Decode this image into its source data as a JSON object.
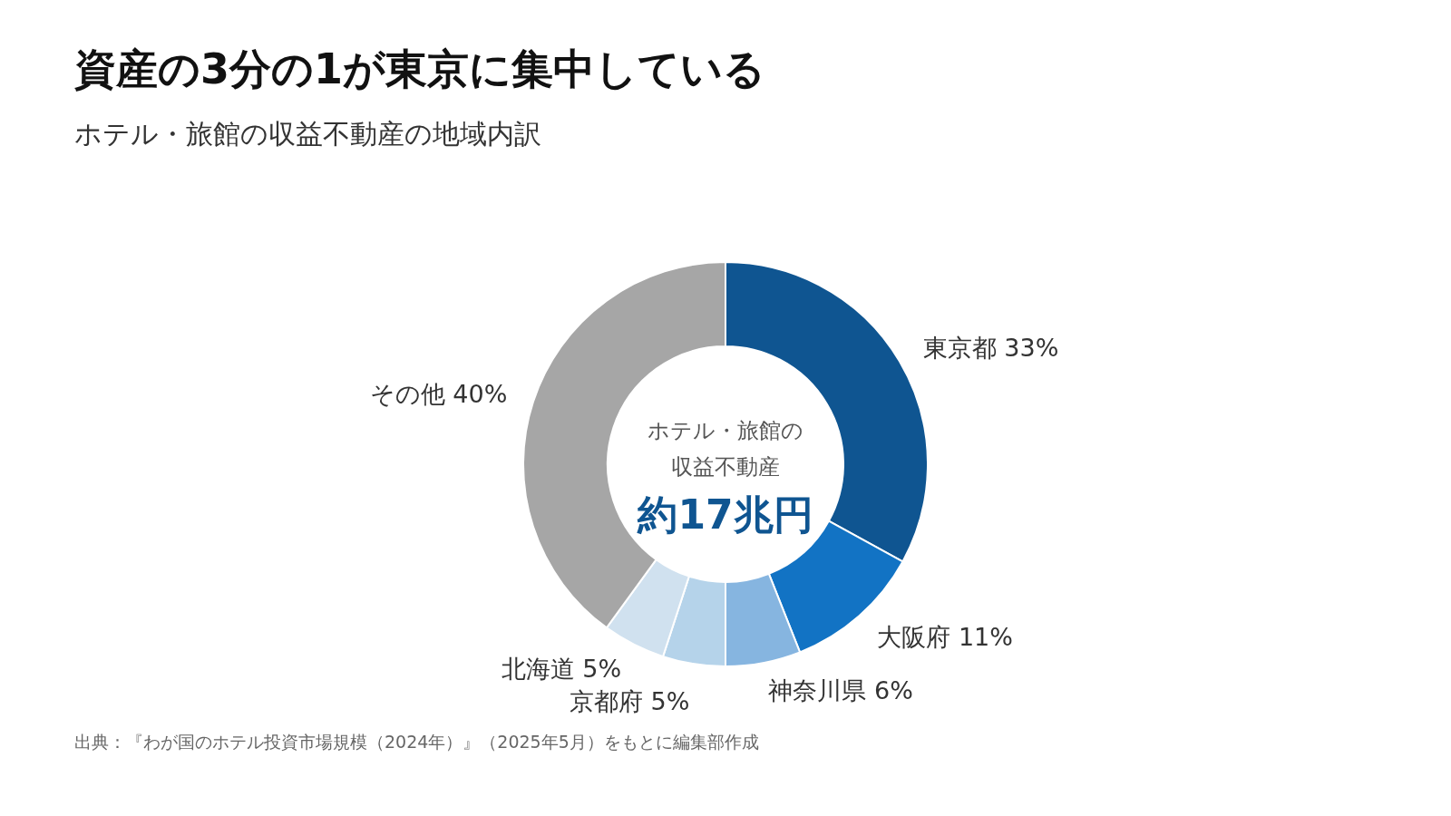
{
  "chart_data": {
    "type": "donut",
    "title": "資産の3分の1が東京に集中している",
    "subtitle": "ホテル・旅館の収益不動産の地域内訳",
    "categories": [
      "東京都",
      "大阪府",
      "神奈川県",
      "京都府",
      "北海道",
      "その他"
    ],
    "values": [
      33,
      11,
      6,
      5,
      5,
      40
    ],
    "value_labels": [
      "33%",
      "11%",
      "6%",
      "5%",
      "5%",
      "40%"
    ],
    "colors": [
      "#0f5591",
      "#1273c4",
      "#86b5e0",
      "#b5d3ea",
      "#d0e1ef",
      "#a6a6a6"
    ],
    "annotations": [
      "ホテル・旅館の",
      "収益不動産",
      "約17兆円",
      "出典：『わが国のホテル投資市場規模（2024年）』（2025年5月）をもとに編集部作成"
    ]
  }
}
